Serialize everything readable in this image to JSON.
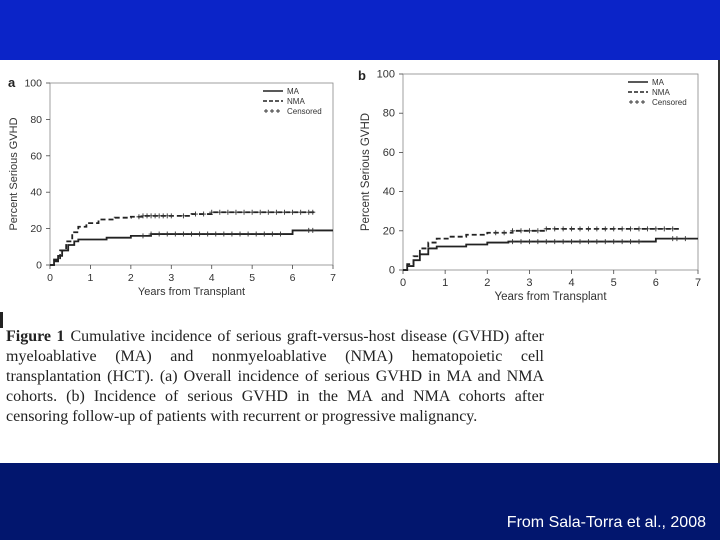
{
  "slide": {
    "credit": "From Sala-Torra et al., 2008",
    "top_bar_color": "#0b24c8",
    "bottom_bar_color": "#02166e"
  },
  "caption": {
    "label": "Figure 1",
    "text": "Cumulative incidence of serious graft-versus-host disease (GVHD) after myeloablative (MA) and nonmyeloablative (NMA) hematopoietic cell transplantation (HCT). (a) Overall incidence of serious GVHD in MA and NMA cohorts. (b) Incidence of serious GVHD in the MA and NMA cohorts after censoring follow-up of patients with recurrent or progressive malignancy."
  },
  "chart_data": [
    {
      "type": "line",
      "panel_label": "a",
      "xlabel": "Years from Transplant",
      "ylabel": "Percent Serious GVHD",
      "xlim": [
        0,
        7
      ],
      "ylim": [
        0,
        100
      ],
      "xticks": [
        0,
        1,
        2,
        3,
        4,
        5,
        6,
        7
      ],
      "yticks": [
        0,
        20,
        40,
        60,
        80,
        100
      ],
      "legend": {
        "placement": "top-right",
        "entries": [
          "MA",
          "NMA",
          "Censored"
        ]
      },
      "series": [
        {
          "name": "MA",
          "style": "solid",
          "points": [
            [
              0,
              0
            ],
            [
              0.1,
              2
            ],
            [
              0.2,
              5
            ],
            [
              0.3,
              8
            ],
            [
              0.45,
              11
            ],
            [
              0.6,
              13
            ],
            [
              0.7,
              14
            ],
            [
              1.0,
              14
            ],
            [
              1.4,
              15
            ],
            [
              2.0,
              16
            ],
            [
              2.5,
              17
            ],
            [
              5.8,
              17
            ],
            [
              6.0,
              19
            ],
            [
              7.0,
              19
            ]
          ],
          "censored": [
            2.3,
            2.5,
            2.7,
            2.9,
            3.1,
            3.3,
            3.5,
            3.7,
            3.9,
            4.1,
            4.3,
            4.5,
            4.7,
            4.9,
            5.1,
            5.3,
            5.5,
            5.7,
            6.4,
            6.5
          ]
        },
        {
          "name": "NMA",
          "style": "dashed",
          "points": [
            [
              0,
              0
            ],
            [
              0.1,
              3
            ],
            [
              0.25,
              8
            ],
            [
              0.4,
              13
            ],
            [
              0.55,
              18
            ],
            [
              0.7,
              21
            ],
            [
              0.9,
              23
            ],
            [
              1.2,
              25
            ],
            [
              1.6,
              26
            ],
            [
              2.0,
              26.5
            ],
            [
              2.3,
              27
            ],
            [
              3.5,
              28
            ],
            [
              4.0,
              29
            ],
            [
              6.6,
              29
            ]
          ],
          "censored": [
            2.2,
            2.3,
            2.4,
            2.5,
            2.6,
            2.7,
            2.8,
            2.9,
            3.0,
            3.3,
            3.6,
            3.8,
            4.0,
            4.2,
            4.4,
            4.6,
            4.8,
            5.0,
            5.2,
            5.4,
            5.6,
            5.8,
            6.0,
            6.2,
            6.4,
            6.5
          ]
        }
      ]
    },
    {
      "type": "line",
      "panel_label": "b",
      "xlabel": "Years from Transplant",
      "ylabel": "Percent Serious GVHD",
      "xlim": [
        0,
        7
      ],
      "ylim": [
        0,
        100
      ],
      "xticks": [
        0,
        1,
        2,
        3,
        4,
        5,
        6,
        7
      ],
      "yticks": [
        0,
        20,
        40,
        60,
        80,
        100
      ],
      "legend": {
        "placement": "top-right",
        "entries": [
          "MA",
          "NMA",
          "Censored"
        ]
      },
      "series": [
        {
          "name": "MA",
          "style": "solid",
          "points": [
            [
              0,
              0
            ],
            [
              0.1,
              2
            ],
            [
              0.25,
              5
            ],
            [
              0.4,
              8
            ],
            [
              0.6,
              11
            ],
            [
              0.8,
              12
            ],
            [
              1.0,
              12
            ],
            [
              1.5,
              13
            ],
            [
              2.0,
              14
            ],
            [
              2.5,
              14.5
            ],
            [
              5.8,
              14.5
            ],
            [
              6.0,
              16
            ],
            [
              7.0,
              16
            ]
          ],
          "censored": [
            2.6,
            2.8,
            3.0,
            3.2,
            3.4,
            3.6,
            3.8,
            4.0,
            4.2,
            4.4,
            4.6,
            4.8,
            5.0,
            5.2,
            5.4,
            5.6,
            6.4,
            6.5,
            6.7
          ]
        },
        {
          "name": "NMA",
          "style": "dashed",
          "points": [
            [
              0,
              0
            ],
            [
              0.1,
              3
            ],
            [
              0.25,
              7
            ],
            [
              0.4,
              11
            ],
            [
              0.6,
              14
            ],
            [
              0.8,
              16
            ],
            [
              1.1,
              17
            ],
            [
              1.5,
              18
            ],
            [
              2.0,
              19
            ],
            [
              2.6,
              20
            ],
            [
              3.4,
              21
            ],
            [
              6.6,
              21
            ]
          ],
          "censored": [
            2.2,
            2.4,
            2.6,
            2.8,
            3.0,
            3.2,
            3.4,
            3.6,
            3.8,
            4.0,
            4.2,
            4.4,
            4.6,
            4.8,
            5.0,
            5.2,
            5.4,
            5.6,
            5.8,
            6.0,
            6.2,
            6.4
          ]
        }
      ]
    }
  ]
}
